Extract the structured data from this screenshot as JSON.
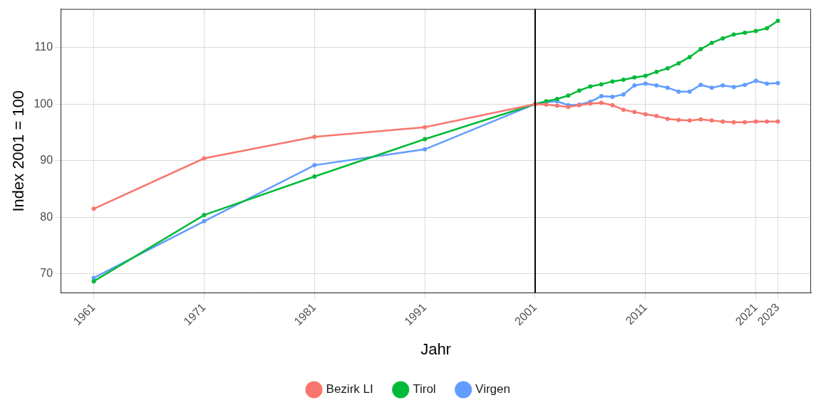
{
  "chart_data": {
    "type": "line",
    "x_label": "Jahr",
    "y_label": "Index 2001 = 100",
    "x": [
      1961,
      1971,
      1981,
      1991,
      2001,
      2002,
      2003,
      2004,
      2005,
      2006,
      2007,
      2008,
      2009,
      2010,
      2011,
      2012,
      2013,
      2014,
      2015,
      2016,
      2017,
      2018,
      2019,
      2020,
      2021,
      2022,
      2023
    ],
    "series": [
      {
        "name": "Bezirk LI",
        "color": "#F8766D",
        "marker": "circle",
        "values": [
          81.5,
          90.4,
          94.2,
          95.9,
          100,
          99.9,
          99.7,
          99.5,
          99.8,
          100.1,
          100.2,
          99.8,
          99.0,
          98.6,
          98.2,
          97.9,
          97.4,
          97.2,
          97.1,
          97.3,
          97.1,
          96.9,
          96.8,
          96.8,
          96.9,
          96.9,
          96.9
        ]
      },
      {
        "name": "Tirol",
        "color": "#00BA38",
        "marker": "circle",
        "values": [
          68.7,
          80.4,
          87.2,
          93.8,
          100,
          100.5,
          100.9,
          101.5,
          102.4,
          103.1,
          103.5,
          104.0,
          104.3,
          104.7,
          105.0,
          105.7,
          106.3,
          107.2,
          108.3,
          109.7,
          110.8,
          111.6,
          112.3,
          112.6,
          112.9,
          113.4,
          114.7
        ]
      },
      {
        "name": "Virgen",
        "color": "#619CFF",
        "marker": "circle",
        "values": [
          69.3,
          79.3,
          89.2,
          92.0,
          100,
          100.3,
          100.5,
          99.8,
          99.9,
          100.4,
          101.4,
          101.3,
          101.7,
          103.3,
          103.6,
          103.3,
          102.9,
          102.2,
          102.2,
          103.4,
          102.9,
          103.3,
          103.0,
          103.4,
          104.1,
          103.6,
          103.7
        ]
      }
    ],
    "xlim": [
      1958,
      2026
    ],
    "xticks": [
      1961,
      1971,
      1981,
      1991,
      2001,
      2011,
      2021,
      2023
    ],
    "ylim": [
      66.6,
      116.8
    ],
    "yticks": [
      70,
      80,
      90,
      100,
      110
    ],
    "vline": 2001,
    "grid": true,
    "legend": "bottom"
  }
}
